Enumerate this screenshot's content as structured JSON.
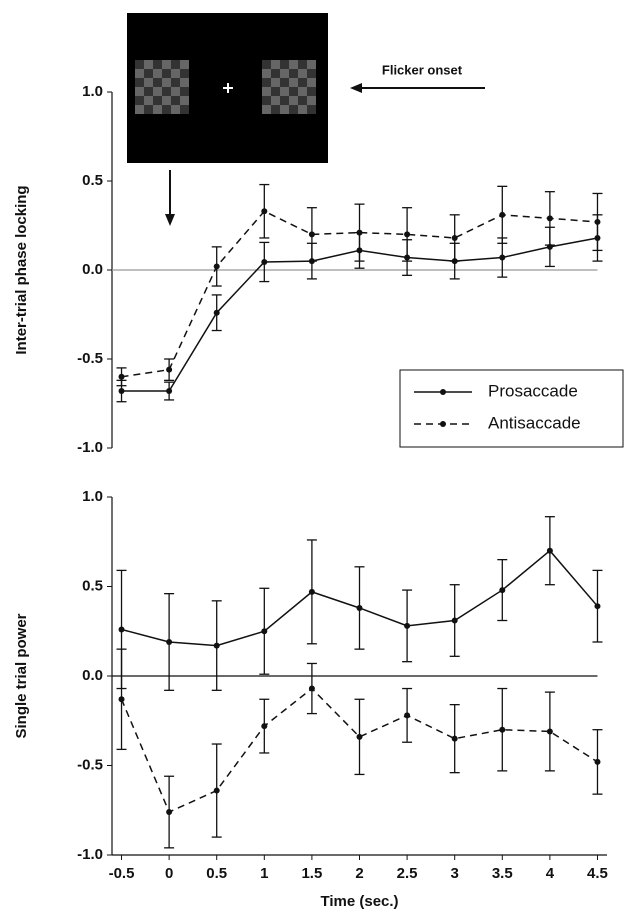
{
  "chart_data": [
    {
      "type": "line",
      "ylabel": "Inter-trial phase locking",
      "annotation": "Flicker onset",
      "x": [
        -0.5,
        0,
        0.5,
        1,
        1.5,
        2,
        2.5,
        3,
        3.5,
        4,
        4.5
      ],
      "xlim": [
        -0.6,
        4.6
      ],
      "ylim": [
        -1.0,
        1.0
      ],
      "yticks": [
        {
          "value": 1.0,
          "label": "1.0"
        },
        0.5,
        {
          "value": 0.0,
          "label": "0.0"
        },
        -0.5,
        {
          "value": -1.0,
          "label": "-1.0"
        }
      ],
      "zero_line": true,
      "zero_line_color": "#999999",
      "bottom_axis": false,
      "legend": "right",
      "series": [
        {
          "name": "Prosaccade",
          "color": "#111111",
          "line_style": "solid",
          "values": [
            -0.68,
            -0.68,
            -0.24,
            0.045,
            0.05,
            0.11,
            0.07,
            0.05,
            0.07,
            0.13,
            0.18
          ],
          "errors": [
            0.06,
            0.05,
            0.1,
            0.11,
            0.1,
            0.1,
            0.1,
            0.1,
            0.11,
            0.11,
            0.13
          ]
        },
        {
          "name": "Antisaccade",
          "color": "#111111",
          "line_style": "dashed",
          "values": [
            -0.6,
            -0.56,
            0.02,
            0.33,
            0.2,
            0.21,
            0.2,
            0.18,
            0.31,
            0.29,
            0.27
          ],
          "errors": [
            0.05,
            0.06,
            0.11,
            0.15,
            0.15,
            0.16,
            0.15,
            0.13,
            0.16,
            0.15,
            0.16
          ]
        }
      ]
    },
    {
      "type": "line",
      "ylabel": "Single trial power",
      "xlabel": "Time (sec.)",
      "x": [
        -0.5,
        0,
        0.5,
        1,
        1.5,
        2,
        2.5,
        3,
        3.5,
        4,
        4.5
      ],
      "xlim": [
        -0.6,
        4.6
      ],
      "ylim": [
        -1.0,
        1.0
      ],
      "xticks": [
        -0.5,
        0,
        0.5,
        1,
        1.5,
        2,
        2.5,
        3,
        3.5,
        4,
        4.5
      ],
      "yticks": [
        {
          "value": 1.0,
          "label": "1.0"
        },
        0.5,
        {
          "value": 0.0,
          "label": "0.0"
        },
        -0.5,
        {
          "value": -1.0,
          "label": "-1.0"
        }
      ],
      "zero_line": true,
      "zero_line_color": "#111111",
      "bottom_axis": true,
      "series": [
        {
          "color": "#111111",
          "line_style": "solid",
          "values": [
            0.26,
            0.19,
            0.17,
            0.25,
            0.47,
            0.38,
            0.28,
            0.31,
            0.48,
            0.7,
            0.39
          ],
          "errors": [
            0.33,
            0.27,
            0.25,
            0.24,
            0.29,
            0.23,
            0.2,
            0.2,
            0.17,
            0.19,
            0.2
          ]
        },
        {
          "color": "#111111",
          "line_style": "dashed",
          "values": [
            -0.13,
            -0.76,
            -0.64,
            -0.28,
            -0.07,
            -0.34,
            -0.22,
            -0.35,
            -0.3,
            -0.31,
            -0.48
          ],
          "errors": [
            0.28,
            0.2,
            0.26,
            0.15,
            0.14,
            0.21,
            0.15,
            0.19,
            0.23,
            0.22,
            0.18
          ]
        }
      ]
    }
  ]
}
